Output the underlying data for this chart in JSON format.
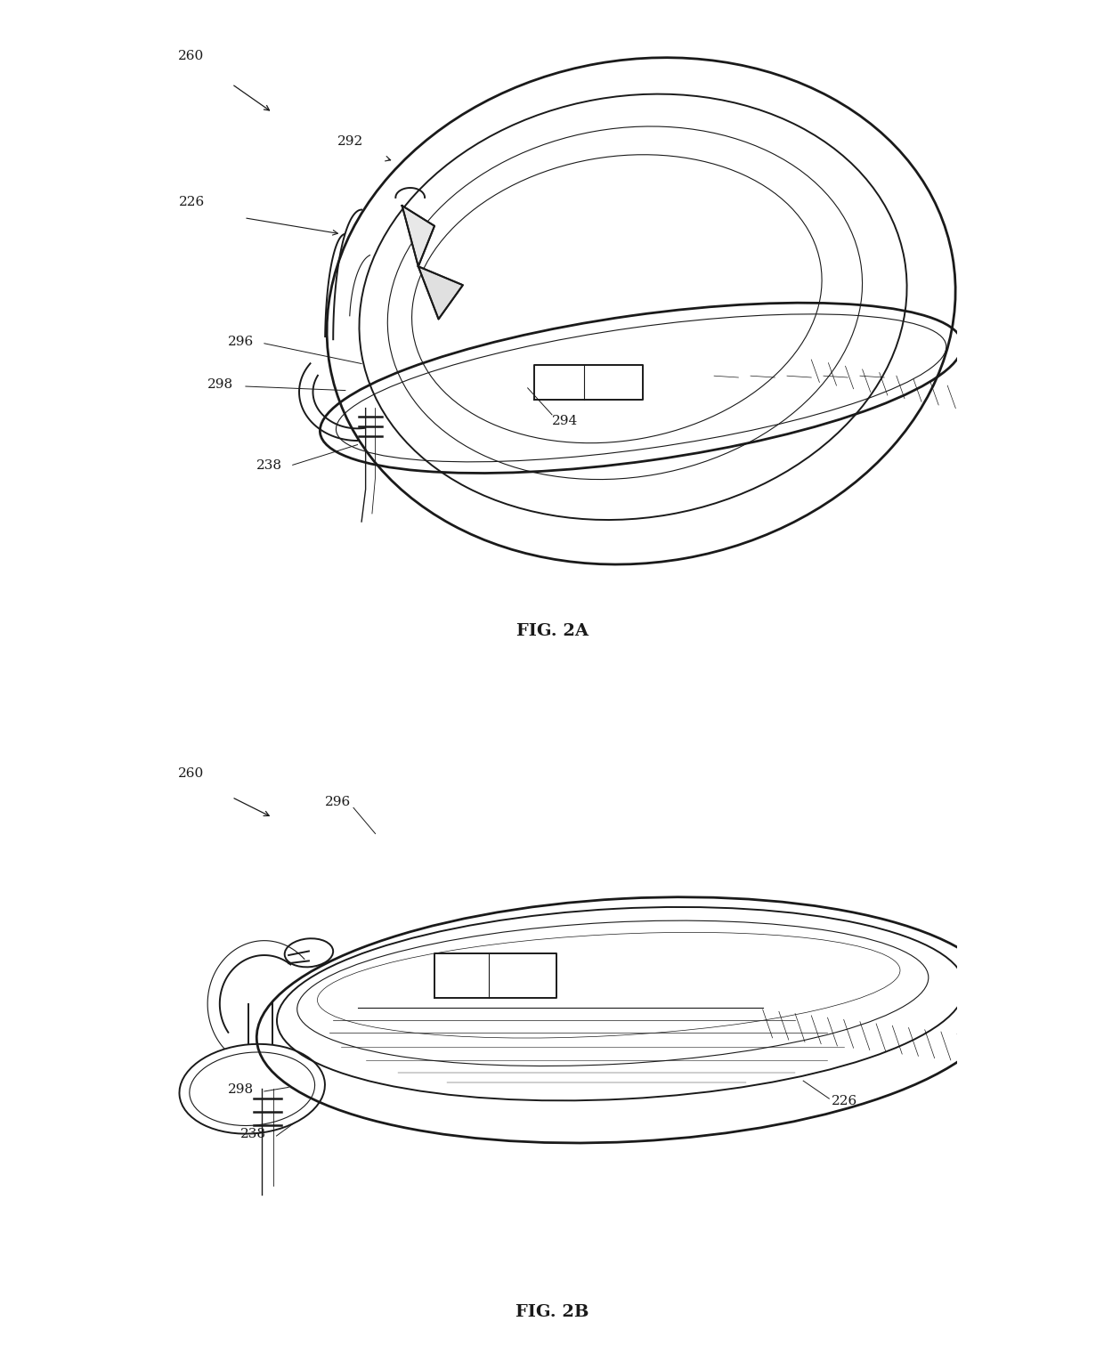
{
  "background_color": "#ffffff",
  "line_color": "#1a1a1a",
  "fig_width": 12.4,
  "fig_height": 15.39,
  "fig2a_label": "FIG. 2A",
  "fig2b_label": "FIG. 2B",
  "lw_thick": 2.0,
  "lw_main": 1.4,
  "lw_thin": 0.8,
  "lw_hair": 0.5,
  "annotation_fontsize": 11,
  "caption_fontsize": 14
}
